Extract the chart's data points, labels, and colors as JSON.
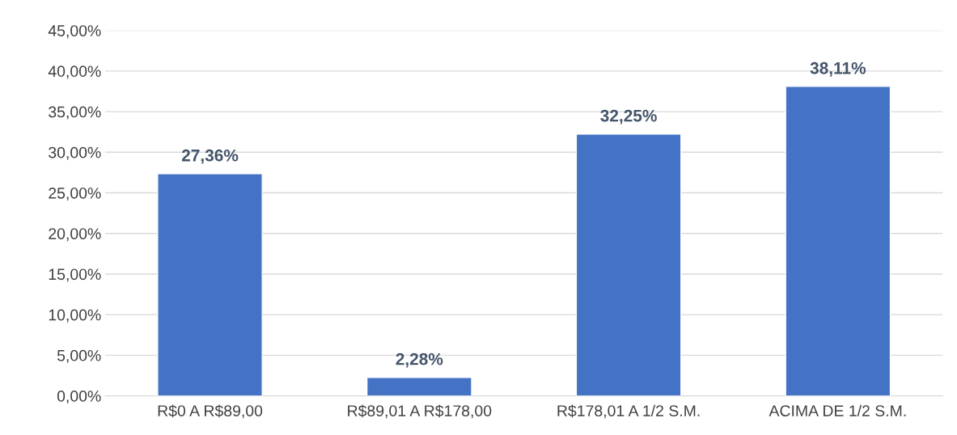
{
  "chart_data": {
    "type": "bar",
    "categories": [
      "R$0 A R$89,00",
      "R$89,01 A R$178,00",
      "R$178,01 A 1/2 S.M.",
      "ACIMA DE 1/2 S.M."
    ],
    "values": [
      27.36,
      2.28,
      32.25,
      38.11
    ],
    "value_labels": [
      "27,36%",
      "2,28%",
      "32,25%",
      "38,11%"
    ],
    "color": "#4472c4",
    "ylim": [
      0,
      45
    ],
    "yticks": [
      {
        "value": 0,
        "label": "0,00%"
      },
      {
        "value": 5,
        "label": "5,00%"
      },
      {
        "value": 10,
        "label": "10,00%"
      },
      {
        "value": 15,
        "label": "15,00%"
      },
      {
        "value": 20,
        "label": "20,00%"
      },
      {
        "value": 25,
        "label": "25,00%"
      },
      {
        "value": 30,
        "label": "30,00%"
      },
      {
        "value": 35,
        "label": "35,00%"
      },
      {
        "value": 40,
        "label": "40,00%"
      },
      {
        "value": 45,
        "label": "45,00%"
      }
    ],
    "grid": "y"
  }
}
